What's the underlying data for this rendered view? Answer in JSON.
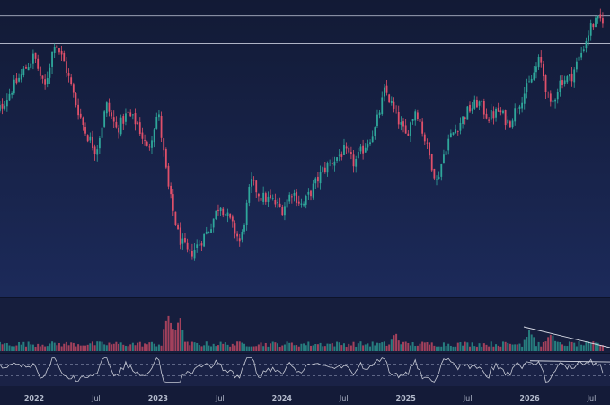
{
  "chart_data": {
    "type": "candlestick",
    "title": "",
    "xlabel": "",
    "ylabel": "",
    "grid": false,
    "x_range": [
      "2021-09",
      "2026-08"
    ],
    "x_ticks": [
      "2022",
      "Jul",
      "2023",
      "Jul",
      "2024",
      "Jul",
      "2025",
      "Jul",
      "2026",
      "Jul"
    ],
    "price_path": [
      {
        "x": "2021-09",
        "y": 52
      },
      {
        "x": "2021-11",
        "y": 63
      },
      {
        "x": "2022-01",
        "y": 73
      },
      {
        "x": "2022-02",
        "y": 62
      },
      {
        "x": "2022-03",
        "y": 78
      },
      {
        "x": "2022-04",
        "y": 70
      },
      {
        "x": "2022-05",
        "y": 58
      },
      {
        "x": "2022-06",
        "y": 48
      },
      {
        "x": "2022-07",
        "y": 42
      },
      {
        "x": "2022-08",
        "y": 57
      },
      {
        "x": "2022-09",
        "y": 49
      },
      {
        "x": "2022-10",
        "y": 54
      },
      {
        "x": "2022-11",
        "y": 51
      },
      {
        "x": "2022-12",
        "y": 42
      },
      {
        "x": "2023-01",
        "y": 55
      },
      {
        "x": "2023-02",
        "y": 30
      },
      {
        "x": "2023-03",
        "y": 14
      },
      {
        "x": "2023-04",
        "y": 8
      },
      {
        "x": "2023-05",
        "y": 12
      },
      {
        "x": "2023-06",
        "y": 17
      },
      {
        "x": "2023-07",
        "y": 25
      },
      {
        "x": "2023-08",
        "y": 19
      },
      {
        "x": "2023-09",
        "y": 12
      },
      {
        "x": "2023-10",
        "y": 32
      },
      {
        "x": "2023-11",
        "y": 27
      },
      {
        "x": "2023-12",
        "y": 26
      },
      {
        "x": "2024-01",
        "y": 23
      },
      {
        "x": "2024-02",
        "y": 29
      },
      {
        "x": "2024-03",
        "y": 24
      },
      {
        "x": "2024-05",
        "y": 36
      },
      {
        "x": "2024-07",
        "y": 42
      },
      {
        "x": "2024-08",
        "y": 38
      },
      {
        "x": "2024-10",
        "y": 49
      },
      {
        "x": "2024-11",
        "y": 62
      },
      {
        "x": "2024-12",
        "y": 54
      },
      {
        "x": "2025-01",
        "y": 47
      },
      {
        "x": "2025-02",
        "y": 56
      },
      {
        "x": "2025-03",
        "y": 44
      },
      {
        "x": "2025-04",
        "y": 32
      },
      {
        "x": "2025-05",
        "y": 45
      },
      {
        "x": "2025-06",
        "y": 50
      },
      {
        "x": "2025-07",
        "y": 55
      },
      {
        "x": "2025-08",
        "y": 58
      },
      {
        "x": "2025-09",
        "y": 53
      },
      {
        "x": "2025-10",
        "y": 55
      },
      {
        "x": "2025-11",
        "y": 51
      },
      {
        "x": "2025-12",
        "y": 58
      },
      {
        "x": "2026-01",
        "y": 64
      },
      {
        "x": "2026-02",
        "y": 72
      },
      {
        "x": "2026-03",
        "y": 56
      },
      {
        "x": "2026-04",
        "y": 65
      },
      {
        "x": "2026-05",
        "y": 66
      },
      {
        "x": "2026-06",
        "y": 74
      },
      {
        "x": "2026-07",
        "y": 83
      },
      {
        "x": "2026-08",
        "y": 85
      }
    ],
    "horizontal_levels": [
      86,
      77
    ],
    "volume_spikes": [
      {
        "x": "2023-02",
        "v": 1.0
      },
      {
        "x": "2023-03",
        "v": 0.9
      },
      {
        "x": "2024-12",
        "v": 0.45
      },
      {
        "x": "2026-01",
        "v": 0.6
      },
      {
        "x": "2026-03",
        "v": 0.5
      }
    ],
    "oscillator_levels": [
      70,
      30
    ],
    "colors": {
      "background": "#141c3a",
      "up": "#2fa79b",
      "down": "#e0506a",
      "level_line": "#c9cede",
      "trend_line": "#d8dbe6",
      "axis_text": "#b4bbcc",
      "oscillator": "#c8cbd6"
    }
  }
}
